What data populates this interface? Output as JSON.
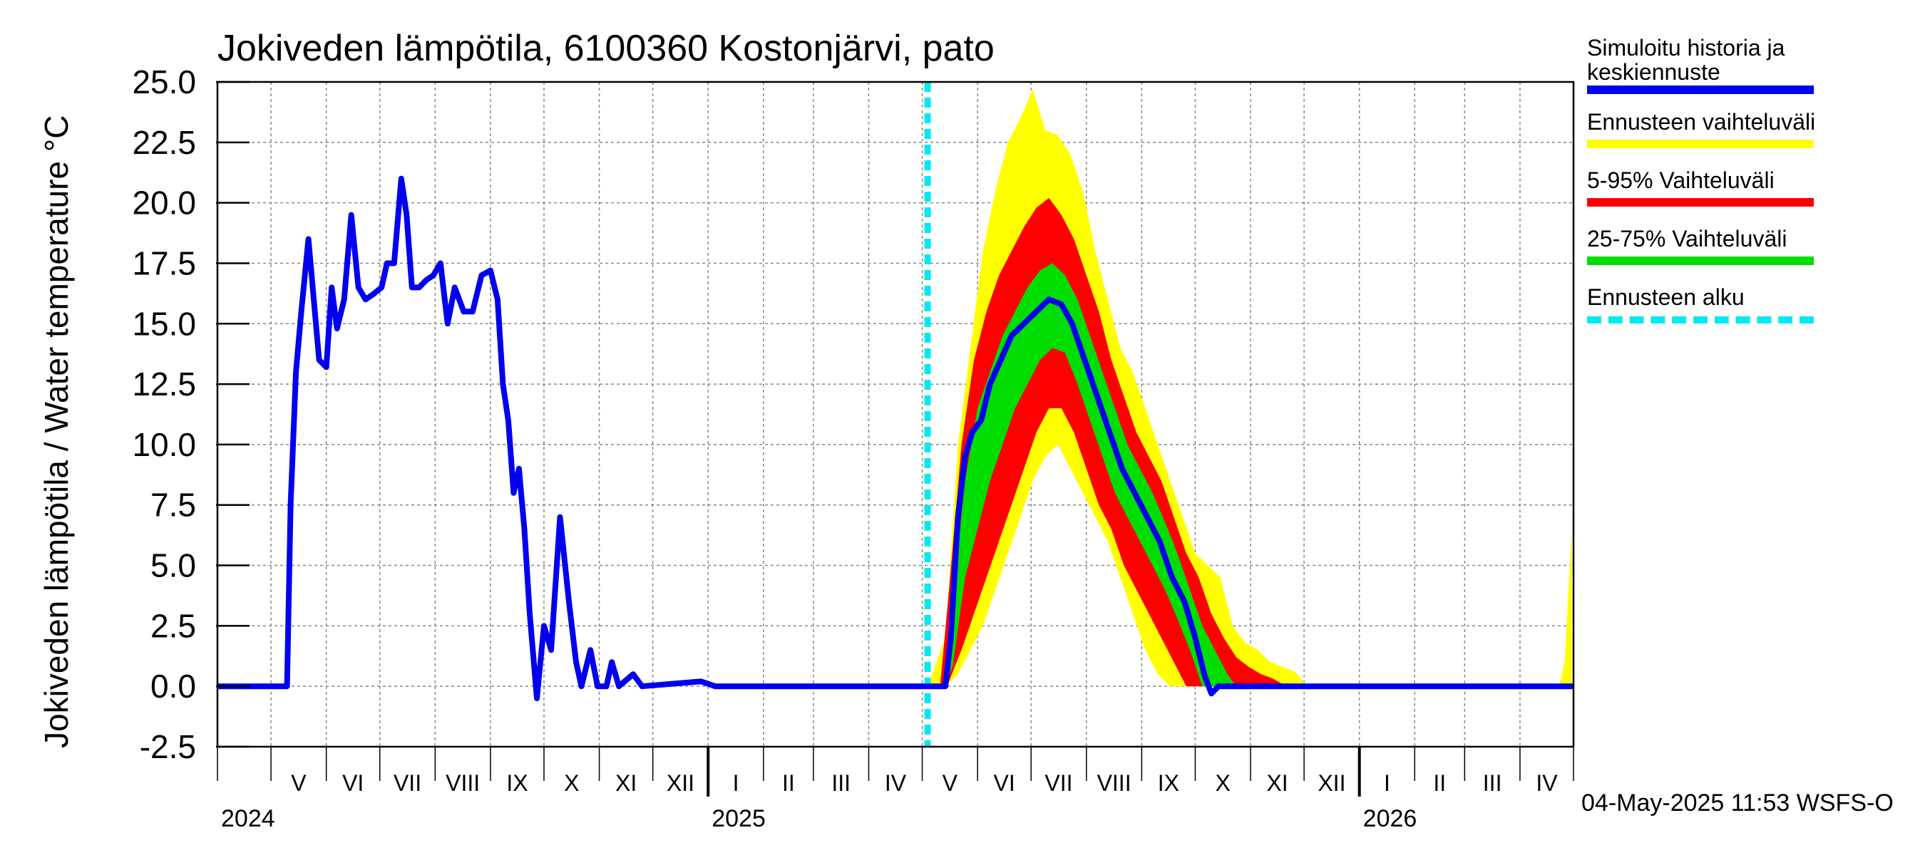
{
  "chart_data": {
    "type": "area",
    "title": "Jokiveden lämpötila, 6100360 Kostonjärvi, pato",
    "ylabel": "Jokiveden lämpötila / Water temperature   °C",
    "ylim": [
      -2.5,
      25.0
    ],
    "yticks": [
      "25.0",
      "22.5",
      "20.0",
      "17.5",
      "15.0",
      "12.5",
      "10.0",
      "7.5",
      "5.0",
      "2.5",
      "0.0",
      "-2.5"
    ],
    "x_start": "2024-04-01",
    "month_labels": [
      "V",
      "VI",
      "VII",
      "VIII",
      "IX",
      "X",
      "XI",
      "XII",
      "I",
      "II",
      "III",
      "IV",
      "V",
      "VI",
      "VII",
      "VIII",
      "IX",
      "X",
      "XI",
      "XII",
      "I",
      "II",
      "III",
      "IV"
    ],
    "year_labels": [
      "2024",
      "2025",
      "2026"
    ],
    "forecast_start": "2025-05-04",
    "footer": "04-May-2025 11:53 WSFS-O",
    "grid": true,
    "legend_position": "right",
    "legend": [
      {
        "label": "Simuloitu historia ja\nkeskiennuste",
        "color": "#0000ee",
        "style": "solid"
      },
      {
        "label": "Ennusteen vaihteluväli",
        "color": "#ffff00",
        "style": "solid"
      },
      {
        "label": "5-95% Vaihteluväli",
        "color": "#ff0000",
        "style": "solid"
      },
      {
        "label": "25-75% Vaihteluväli",
        "color": "#00dd00",
        "style": "solid"
      },
      {
        "label": "Ennusteen alku",
        "color": "#00eaf2",
        "style": "dashed"
      }
    ],
    "series": [
      {
        "name": "Simuloitu historia ja keskiennuste",
        "color": "#0000ee",
        "points": [
          [
            "2024-04-01",
            0.0
          ],
          [
            "2024-05-10",
            0.0
          ],
          [
            "2024-05-12",
            7.5
          ],
          [
            "2024-05-15",
            13.0
          ],
          [
            "2024-05-18",
            15.5
          ],
          [
            "2024-05-22",
            18.5
          ],
          [
            "2024-05-25",
            16.0
          ],
          [
            "2024-05-28",
            13.5
          ],
          [
            "2024-06-01",
            13.2
          ],
          [
            "2024-06-04",
            16.5
          ],
          [
            "2024-06-07",
            14.8
          ],
          [
            "2024-06-11",
            16.0
          ],
          [
            "2024-06-15",
            19.5
          ],
          [
            "2024-06-19",
            16.5
          ],
          [
            "2024-06-23",
            16.0
          ],
          [
            "2024-06-27",
            16.2
          ],
          [
            "2024-07-02",
            16.5
          ],
          [
            "2024-07-05",
            17.5
          ],
          [
            "2024-07-09",
            17.5
          ],
          [
            "2024-07-13",
            21.0
          ],
          [
            "2024-07-16",
            19.5
          ],
          [
            "2024-07-19",
            16.5
          ],
          [
            "2024-07-23",
            16.5
          ],
          [
            "2024-07-27",
            16.8
          ],
          [
            "2024-07-31",
            17.0
          ],
          [
            "2024-08-04",
            17.5
          ],
          [
            "2024-08-08",
            15.0
          ],
          [
            "2024-08-12",
            16.5
          ],
          [
            "2024-08-17",
            15.5
          ],
          [
            "2024-08-22",
            15.5
          ],
          [
            "2024-08-27",
            17.0
          ],
          [
            "2024-09-01",
            17.2
          ],
          [
            "2024-09-05",
            16.0
          ],
          [
            "2024-09-08",
            12.5
          ],
          [
            "2024-09-11",
            11.0
          ],
          [
            "2024-09-14",
            8.0
          ],
          [
            "2024-09-17",
            9.0
          ],
          [
            "2024-09-20",
            6.5
          ],
          [
            "2024-09-23",
            3.0
          ],
          [
            "2024-09-27",
            -0.5
          ],
          [
            "2024-10-01",
            2.5
          ],
          [
            "2024-10-05",
            1.5
          ],
          [
            "2024-10-10",
            7.0
          ],
          [
            "2024-10-15",
            3.5
          ],
          [
            "2024-10-19",
            1.0
          ],
          [
            "2024-10-22",
            0.0
          ],
          [
            "2024-10-27",
            1.5
          ],
          [
            "2024-10-31",
            0.0
          ],
          [
            "2024-11-05",
            0.0
          ],
          [
            "2024-11-08",
            1.0
          ],
          [
            "2024-11-12",
            0.0
          ],
          [
            "2024-11-20",
            0.5
          ],
          [
            "2024-11-25",
            0.0
          ],
          [
            "2024-12-28",
            0.2
          ],
          [
            "2025-01-05",
            0.0
          ],
          [
            "2025-05-14",
            0.0
          ],
          [
            "2025-05-17",
            2.0
          ],
          [
            "2025-05-21",
            7.0
          ],
          [
            "2025-05-25",
            9.5
          ],
          [
            "2025-05-29",
            10.5
          ],
          [
            "2025-06-03",
            11.0
          ],
          [
            "2025-06-08",
            12.5
          ],
          [
            "2025-06-14",
            13.5
          ],
          [
            "2025-06-20",
            14.5
          ],
          [
            "2025-06-27",
            15.0
          ],
          [
            "2025-07-04",
            15.5
          ],
          [
            "2025-07-11",
            16.0
          ],
          [
            "2025-07-18",
            15.8
          ],
          [
            "2025-07-24",
            15.0
          ],
          [
            "2025-07-31",
            13.5
          ],
          [
            "2025-08-07",
            12.0
          ],
          [
            "2025-08-14",
            10.5
          ],
          [
            "2025-08-21",
            9.0
          ],
          [
            "2025-08-28",
            8.0
          ],
          [
            "2025-09-04",
            7.0
          ],
          [
            "2025-09-11",
            6.0
          ],
          [
            "2025-09-18",
            4.5
          ],
          [
            "2025-09-25",
            3.5
          ],
          [
            "2025-10-01",
            2.0
          ],
          [
            "2025-10-06",
            0.5
          ],
          [
            "2025-10-10",
            -0.3
          ],
          [
            "2025-10-14",
            0.0
          ],
          [
            "2026-05-01",
            0.0
          ]
        ]
      }
    ],
    "bands": [
      {
        "name": "Ennusteen vaihteluväli",
        "color": "#ffff00",
        "points": [
          [
            "2025-05-04",
            0.0,
            0.0
          ],
          [
            "2025-05-14",
            0.0,
            2.0
          ],
          [
            "2025-05-21",
            0.5,
            10.0
          ],
          [
            "2025-05-28",
            1.5,
            14.0
          ],
          [
            "2025-06-04",
            2.5,
            18.0
          ],
          [
            "2025-06-11",
            4.0,
            20.5
          ],
          [
            "2025-06-18",
            5.5,
            22.5
          ],
          [
            "2025-06-25",
            7.0,
            23.5
          ],
          [
            "2025-07-02",
            8.5,
            24.7
          ],
          [
            "2025-07-09",
            9.5,
            23.0
          ],
          [
            "2025-07-16",
            10.0,
            22.8
          ],
          [
            "2025-07-23",
            9.0,
            22.0
          ],
          [
            "2025-07-30",
            8.0,
            20.5
          ],
          [
            "2025-08-06",
            7.0,
            18.0
          ],
          [
            "2025-08-13",
            6.0,
            16.0
          ],
          [
            "2025-08-20",
            4.5,
            14.0
          ],
          [
            "2025-08-27",
            3.0,
            13.0
          ],
          [
            "2025-09-03",
            1.5,
            11.5
          ],
          [
            "2025-09-10",
            0.5,
            10.0
          ],
          [
            "2025-09-17",
            0.0,
            8.5
          ],
          [
            "2025-09-24",
            0.0,
            7.0
          ],
          [
            "2025-10-01",
            0.0,
            5.5
          ],
          [
            "2025-10-08",
            0.0,
            5.0
          ],
          [
            "2025-10-15",
            0.0,
            4.5
          ],
          [
            "2025-10-22",
            0.0,
            2.5
          ],
          [
            "2025-10-29",
            0.0,
            1.8
          ],
          [
            "2025-11-05",
            0.0,
            1.5
          ],
          [
            "2025-11-12",
            0.0,
            1.0
          ],
          [
            "2025-11-19",
            0.0,
            0.8
          ],
          [
            "2025-11-26",
            0.0,
            0.6
          ],
          [
            "2025-12-03",
            0.0,
            0.0
          ],
          [
            "2026-04-23",
            0.0,
            0.0
          ],
          [
            "2026-04-26",
            0.0,
            1.0
          ],
          [
            "2026-04-30",
            0.0,
            6.5
          ]
        ]
      },
      {
        "name": "5-95% Vaihteluväli",
        "color": "#ff0000",
        "points": [
          [
            "2025-05-11",
            0.0,
            0.0
          ],
          [
            "2025-05-16",
            0.2,
            4.0
          ],
          [
            "2025-05-23",
            1.5,
            10.0
          ],
          [
            "2025-05-30",
            3.0,
            13.5
          ],
          [
            "2025-06-06",
            4.5,
            15.5
          ],
          [
            "2025-06-13",
            6.0,
            17.0
          ],
          [
            "2025-06-20",
            7.5,
            18.0
          ],
          [
            "2025-06-27",
            9.0,
            19.0
          ],
          [
            "2025-07-04",
            10.5,
            19.8
          ],
          [
            "2025-07-11",
            11.5,
            20.2
          ],
          [
            "2025-07-18",
            11.5,
            19.5
          ],
          [
            "2025-07-25",
            10.5,
            18.5
          ],
          [
            "2025-08-01",
            9.0,
            17.0
          ],
          [
            "2025-08-08",
            7.5,
            15.5
          ],
          [
            "2025-08-15",
            6.5,
            13.5
          ],
          [
            "2025-08-22",
            5.0,
            12.0
          ],
          [
            "2025-08-29",
            4.0,
            10.5
          ],
          [
            "2025-09-05",
            3.0,
            9.5
          ],
          [
            "2025-09-12",
            2.0,
            8.5
          ],
          [
            "2025-09-19",
            1.0,
            7.0
          ],
          [
            "2025-09-26",
            0.0,
            5.5
          ],
          [
            "2025-10-03",
            0.0,
            4.5
          ],
          [
            "2025-10-10",
            0.0,
            3.0
          ],
          [
            "2025-10-17",
            0.0,
            2.0
          ],
          [
            "2025-10-24",
            0.0,
            1.2
          ],
          [
            "2025-10-31",
            0.0,
            0.8
          ],
          [
            "2025-11-07",
            0.0,
            0.5
          ],
          [
            "2025-11-14",
            0.0,
            0.3
          ],
          [
            "2025-11-21",
            0.0,
            0.0
          ]
        ]
      },
      {
        "name": "25-75% Vaihteluväli",
        "color": "#00dd00",
        "points": [
          [
            "2025-05-13",
            0.0,
            0.0
          ],
          [
            "2025-05-18",
            0.8,
            3.5
          ],
          [
            "2025-05-25",
            4.5,
            8.5
          ],
          [
            "2025-06-01",
            6.5,
            11.5
          ],
          [
            "2025-06-08",
            8.5,
            13.0
          ],
          [
            "2025-06-15",
            10.0,
            14.5
          ],
          [
            "2025-06-22",
            11.5,
            15.5
          ],
          [
            "2025-06-29",
            12.5,
            16.5
          ],
          [
            "2025-07-06",
            13.5,
            17.2
          ],
          [
            "2025-07-13",
            14.0,
            17.5
          ],
          [
            "2025-07-20",
            13.8,
            17.0
          ],
          [
            "2025-07-27",
            12.5,
            16.0
          ],
          [
            "2025-08-03",
            11.0,
            14.5
          ],
          [
            "2025-08-10",
            9.5,
            13.0
          ],
          [
            "2025-08-17",
            8.0,
            11.5
          ],
          [
            "2025-08-24",
            7.0,
            10.0
          ],
          [
            "2025-08-31",
            6.0,
            9.0
          ],
          [
            "2025-09-07",
            5.0,
            8.0
          ],
          [
            "2025-09-14",
            4.0,
            6.8
          ],
          [
            "2025-09-21",
            2.8,
            5.5
          ],
          [
            "2025-09-28",
            1.5,
            4.0
          ],
          [
            "2025-10-05",
            0.0,
            2.5
          ],
          [
            "2025-10-12",
            0.0,
            1.5
          ],
          [
            "2025-10-19",
            0.0,
            0.5
          ],
          [
            "2025-10-24",
            0.0,
            0.0
          ]
        ]
      }
    ]
  }
}
